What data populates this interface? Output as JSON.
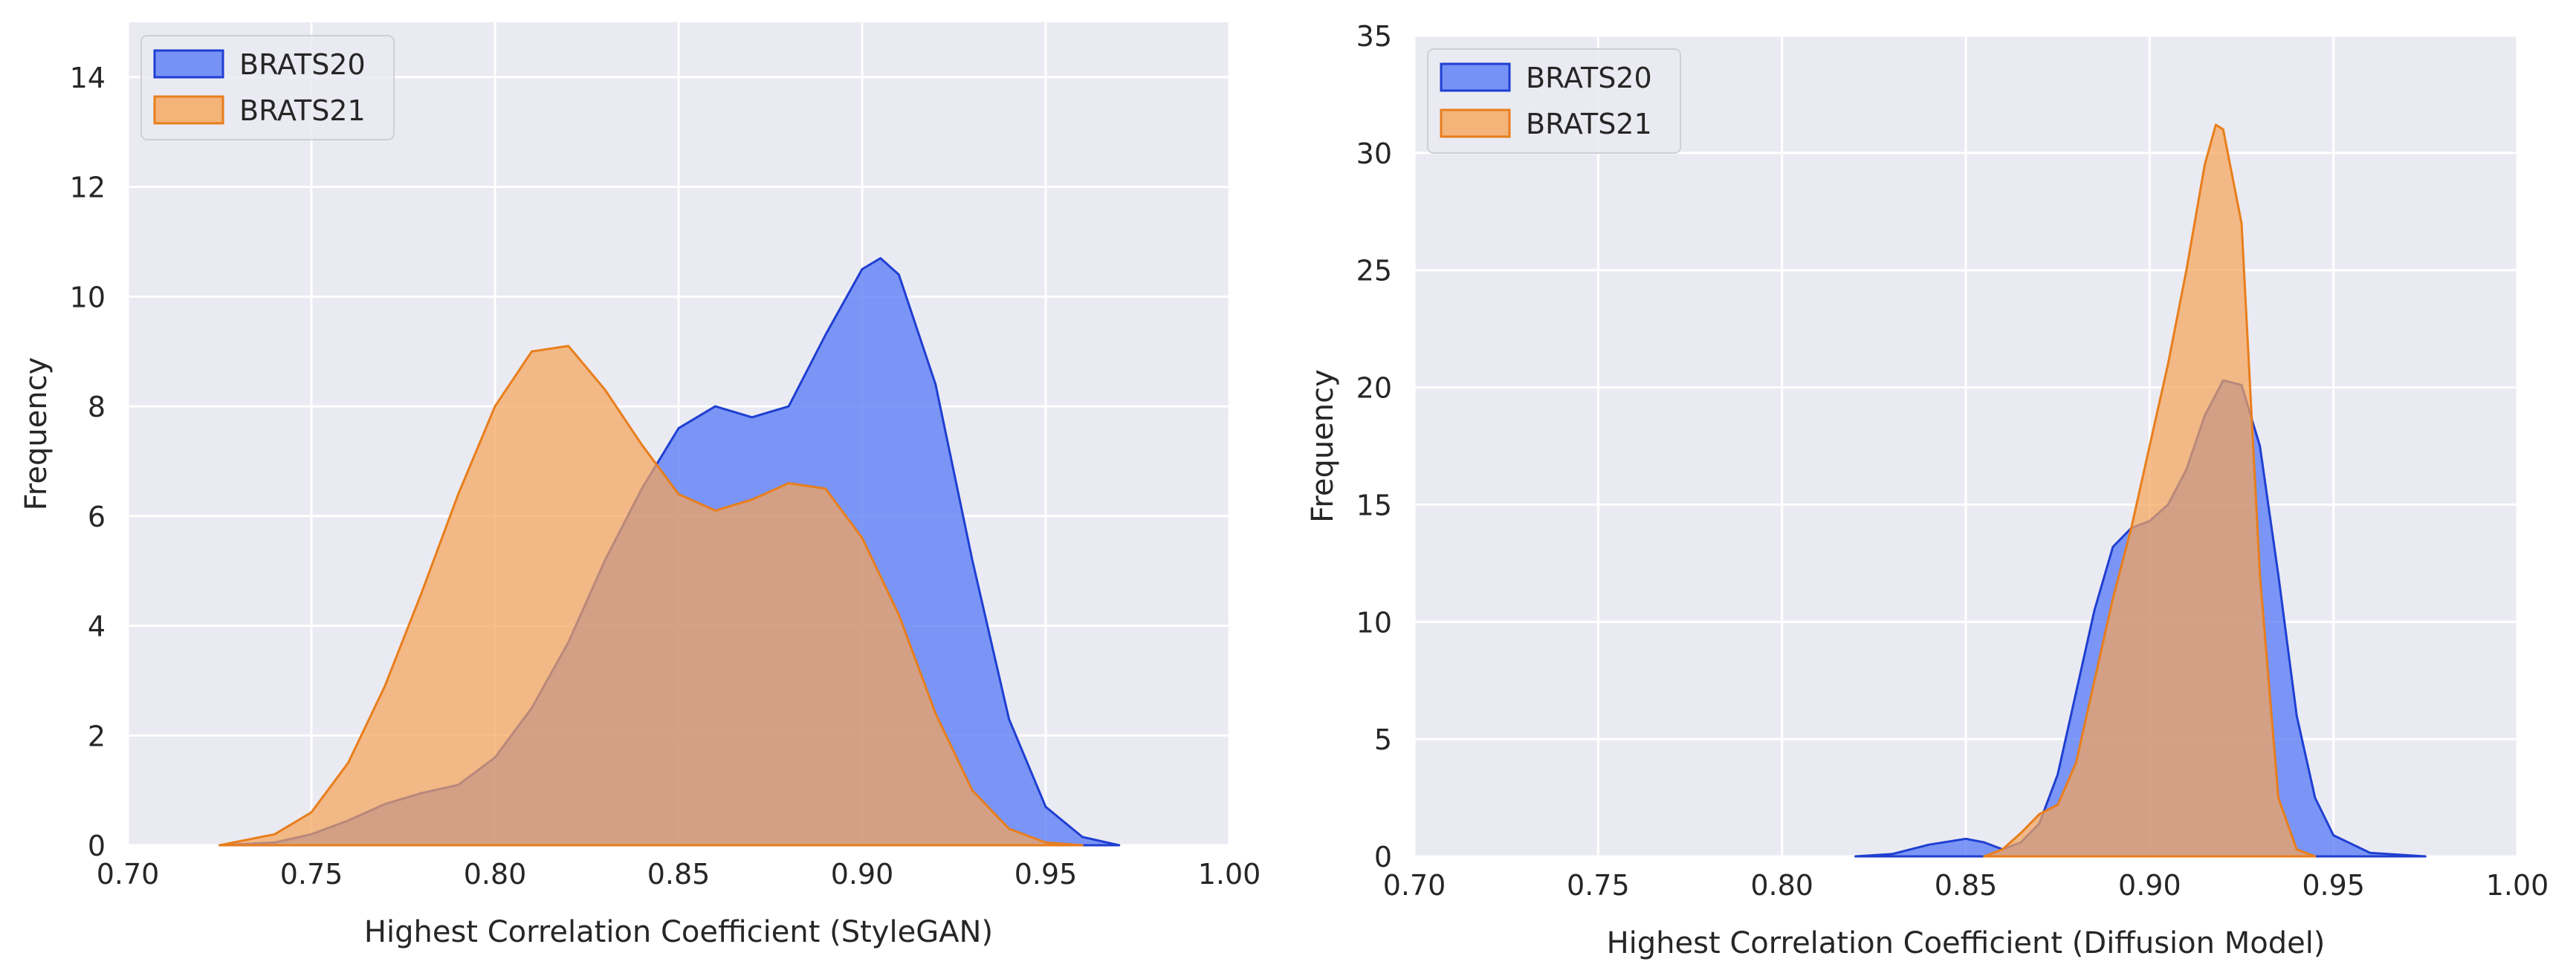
{
  "colors": {
    "background": "#eaeaf2",
    "grid": "#ffffff",
    "brats20_fill": "#5a7cf6",
    "brats20_edge": "#1f3fd1",
    "brats21_fill": "#f5a55a",
    "brats21_edge": "#e87e1c"
  },
  "chart_data": [
    {
      "type": "area",
      "name": "stylegan-kde",
      "xlabel": "Highest Correlation Coefficient (StyleGAN)",
      "ylabel": "Frequency",
      "xlim": [
        0.7,
        1.0
      ],
      "ylim": [
        0,
        15
      ],
      "xticks": [
        0.7,
        0.75,
        0.8,
        0.85,
        0.9,
        0.95,
        1.0
      ],
      "xtick_labels": [
        "0.70",
        "0.75",
        "0.80",
        "0.85",
        "0.90",
        "0.95",
        "1.00"
      ],
      "yticks": [
        0,
        2,
        4,
        6,
        8,
        10,
        12,
        14
      ],
      "ytick_labels": [
        "0",
        "2",
        "4",
        "6",
        "8",
        "10",
        "12",
        "14"
      ],
      "legend_position": "top-left",
      "grid": true,
      "series": [
        {
          "name": "BRATS20",
          "x": [
            0.725,
            0.74,
            0.75,
            0.76,
            0.77,
            0.78,
            0.79,
            0.8,
            0.81,
            0.82,
            0.83,
            0.84,
            0.85,
            0.86,
            0.87,
            0.88,
            0.89,
            0.9,
            0.905,
            0.91,
            0.92,
            0.93,
            0.94,
            0.95,
            0.96,
            0.97
          ],
          "y": [
            0.0,
            0.05,
            0.2,
            0.45,
            0.75,
            0.95,
            1.1,
            1.6,
            2.5,
            3.7,
            5.2,
            6.5,
            7.6,
            8.0,
            7.8,
            8.0,
            9.3,
            10.5,
            10.7,
            10.4,
            8.4,
            5.2,
            2.3,
            0.7,
            0.15,
            0.0
          ]
        },
        {
          "name": "BRATS21",
          "x": [
            0.725,
            0.74,
            0.75,
            0.76,
            0.77,
            0.78,
            0.79,
            0.8,
            0.81,
            0.82,
            0.83,
            0.84,
            0.85,
            0.86,
            0.87,
            0.88,
            0.89,
            0.9,
            0.91,
            0.92,
            0.93,
            0.94,
            0.95,
            0.96
          ],
          "y": [
            0.0,
            0.2,
            0.6,
            1.5,
            2.9,
            4.6,
            6.4,
            8.0,
            9.0,
            9.1,
            8.3,
            7.3,
            6.4,
            6.1,
            6.3,
            6.6,
            6.5,
            5.6,
            4.2,
            2.4,
            1.0,
            0.3,
            0.05,
            0.0
          ]
        }
      ]
    },
    {
      "type": "area",
      "name": "diffusion-kde",
      "xlabel": "Highest Correlation Coefficient (Diffusion Model)",
      "ylabel": "Frequency",
      "xlim": [
        0.7,
        1.0
      ],
      "ylim": [
        0,
        35
      ],
      "xticks": [
        0.7,
        0.75,
        0.8,
        0.85,
        0.9,
        0.95,
        1.0
      ],
      "xtick_labels": [
        "0.70",
        "0.75",
        "0.80",
        "0.85",
        "0.90",
        "0.95",
        "1.00"
      ],
      "yticks": [
        0,
        5,
        10,
        15,
        20,
        25,
        30,
        35
      ],
      "ytick_labels": [
        "0",
        "5",
        "10",
        "15",
        "20",
        "25",
        "30",
        "35"
      ],
      "legend_position": "top-left",
      "grid": true,
      "series": [
        {
          "name": "BRATS20",
          "x": [
            0.82,
            0.83,
            0.84,
            0.85,
            0.855,
            0.86,
            0.865,
            0.87,
            0.875,
            0.88,
            0.885,
            0.89,
            0.895,
            0.9,
            0.905,
            0.91,
            0.915,
            0.92,
            0.925,
            0.93,
            0.935,
            0.94,
            0.945,
            0.95,
            0.96,
            0.975
          ],
          "y": [
            0.0,
            0.1,
            0.5,
            0.75,
            0.6,
            0.3,
            0.6,
            1.4,
            3.5,
            7.0,
            10.5,
            13.2,
            14.0,
            14.3,
            15.0,
            16.5,
            18.8,
            20.3,
            20.1,
            17.5,
            12.0,
            6.0,
            2.5,
            0.9,
            0.15,
            0.0
          ]
        },
        {
          "name": "BRATS21",
          "x": [
            0.855,
            0.86,
            0.865,
            0.87,
            0.875,
            0.88,
            0.885,
            0.89,
            0.895,
            0.9,
            0.905,
            0.91,
            0.915,
            0.918,
            0.92,
            0.925,
            0.93,
            0.935,
            0.94,
            0.945
          ],
          "y": [
            0.0,
            0.3,
            1.0,
            1.8,
            2.2,
            4.0,
            7.5,
            11.0,
            14.0,
            17.5,
            21.0,
            25.0,
            29.5,
            31.2,
            31.0,
            27.0,
            12.0,
            2.5,
            0.3,
            0.0
          ]
        }
      ]
    }
  ]
}
